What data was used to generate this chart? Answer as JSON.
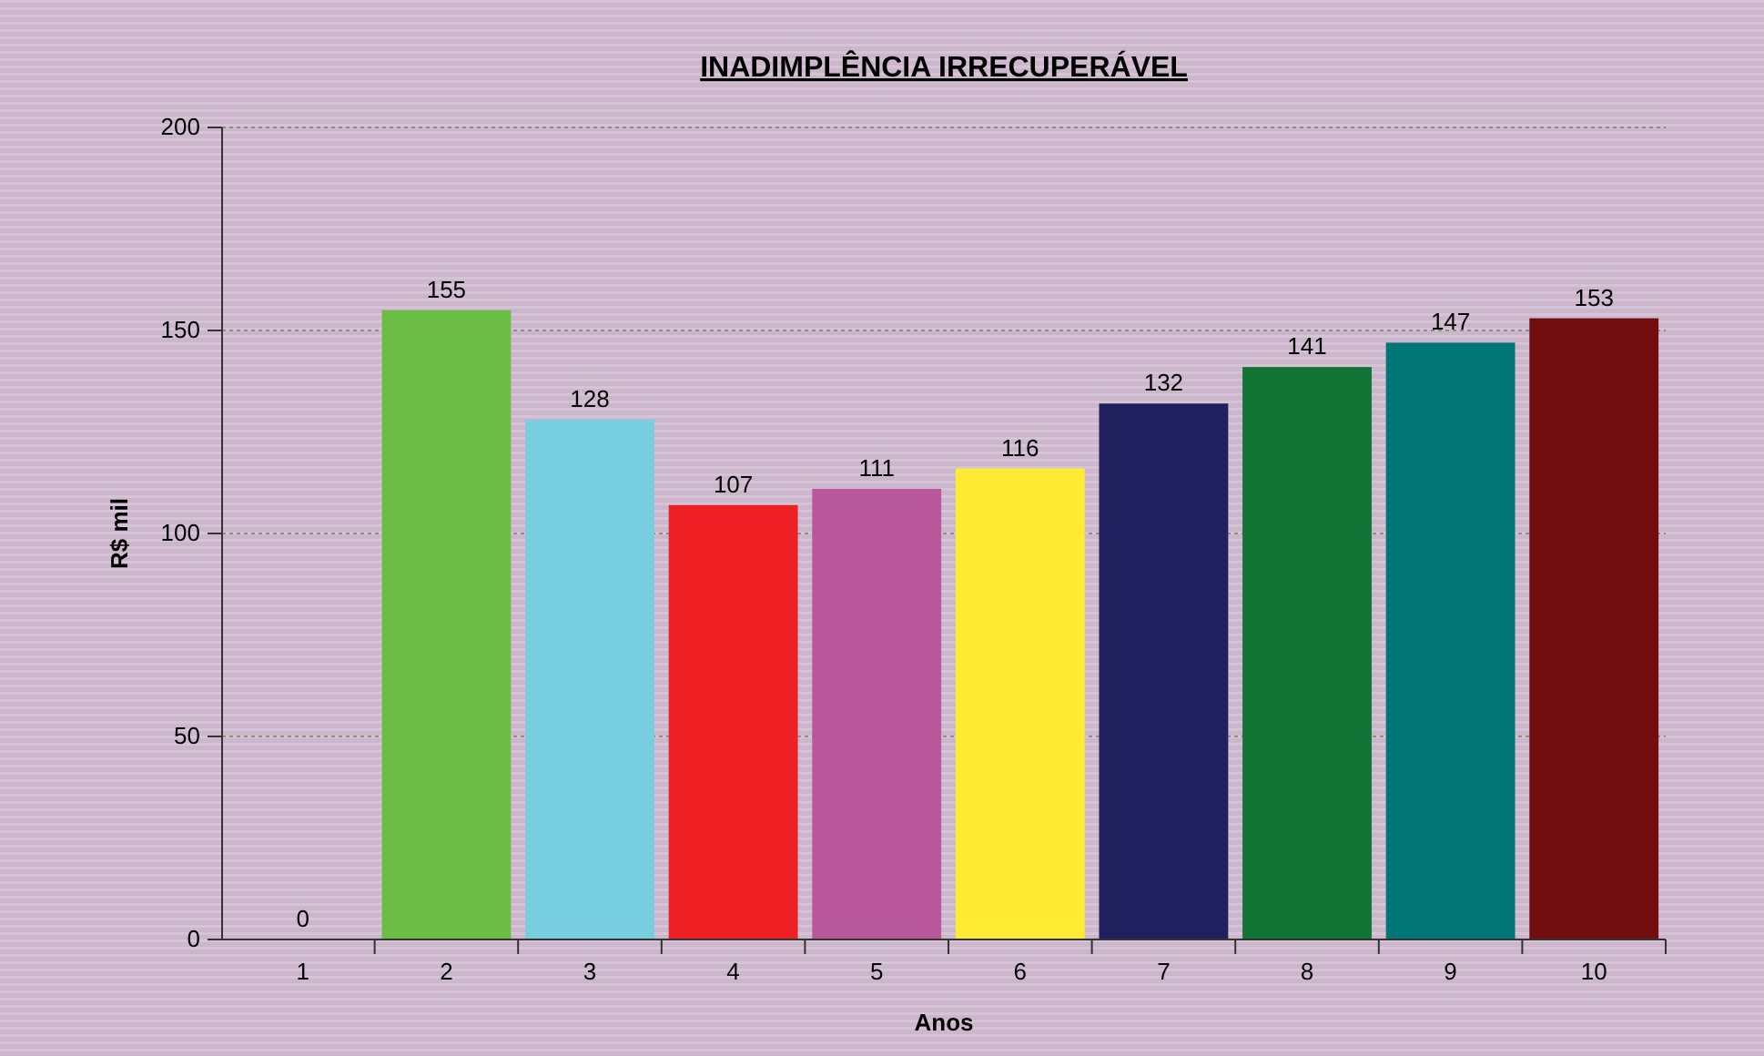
{
  "chart_data": {
    "type": "bar",
    "title": "INADIMPLÊNCIA IRRECUPERÁVEL",
    "xlabel": "Anos",
    "ylabel": "R$ mil",
    "categories": [
      "1",
      "2",
      "3",
      "4",
      "5",
      "6",
      "7",
      "8",
      "9",
      "10"
    ],
    "values": [
      0,
      155,
      128,
      107,
      111,
      116,
      132,
      141,
      147,
      153
    ],
    "colors": [
      "#3b5bb5",
      "#6bbd45",
      "#78cfe0",
      "#ee2024",
      "#b9579b",
      "#ffeb33",
      "#20205f",
      "#137535",
      "#007676",
      "#720e10"
    ],
    "ylim": [
      0,
      200
    ],
    "yticks": [
      0,
      50,
      100,
      150,
      200
    ],
    "grid": "y",
    "data_labels": true
  }
}
